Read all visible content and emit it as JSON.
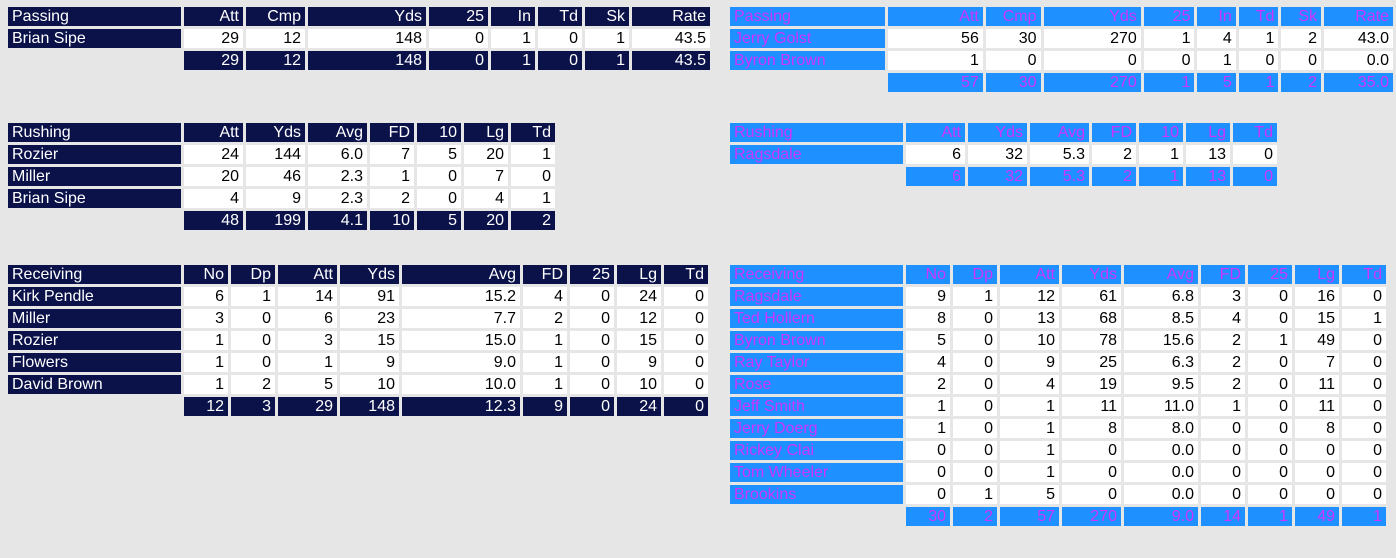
{
  "colors": {
    "navy": "#0b124a",
    "blue": "#1e90ff",
    "magenta_text": "#cc33ff",
    "background": "#e6e6e6"
  },
  "left": {
    "passing": {
      "title": "Passing",
      "columns": [
        "Att",
        "Cmp",
        "Yds",
        "25",
        "In",
        "Td",
        "Sk",
        "Rate"
      ],
      "rows": [
        {
          "name": "Brian Sipe",
          "vals": [
            "29",
            "12",
            "148",
            "0",
            "1",
            "0",
            "1",
            "43.5"
          ]
        }
      ],
      "total": [
        "29",
        "12",
        "148",
        "0",
        "1",
        "0",
        "1",
        "43.5"
      ]
    },
    "rushing": {
      "title": "Rushing",
      "columns": [
        "Att",
        "Yds",
        "Avg",
        "FD",
        "10",
        "Lg",
        "Td"
      ],
      "rows": [
        {
          "name": "Rozier",
          "vals": [
            "24",
            "144",
            "6.0",
            "7",
            "5",
            "20",
            "1"
          ]
        },
        {
          "name": "Miller",
          "vals": [
            "20",
            "46",
            "2.3",
            "1",
            "0",
            "7",
            "0"
          ]
        },
        {
          "name": "Brian Sipe",
          "vals": [
            "4",
            "9",
            "2.3",
            "2",
            "0",
            "4",
            "1"
          ]
        }
      ],
      "total": [
        "48",
        "199",
        "4.1",
        "10",
        "5",
        "20",
        "2"
      ]
    },
    "receiving": {
      "title": "Receiving",
      "columns": [
        "No",
        "Dp",
        "Att",
        "Yds",
        "Avg",
        "FD",
        "25",
        "Lg",
        "Td"
      ],
      "rows": [
        {
          "name": "Kirk Pendle",
          "vals": [
            "6",
            "1",
            "14",
            "91",
            "15.2",
            "4",
            "0",
            "24",
            "0"
          ]
        },
        {
          "name": "Miller",
          "vals": [
            "3",
            "0",
            "6",
            "23",
            "7.7",
            "2",
            "0",
            "12",
            "0"
          ]
        },
        {
          "name": "Rozier",
          "vals": [
            "1",
            "0",
            "3",
            "15",
            "15.0",
            "1",
            "0",
            "15",
            "0"
          ]
        },
        {
          "name": "Flowers",
          "vals": [
            "1",
            "0",
            "1",
            "9",
            "9.0",
            "1",
            "0",
            "9",
            "0"
          ]
        },
        {
          "name": "David Brown",
          "vals": [
            "1",
            "2",
            "5",
            "10",
            "10.0",
            "1",
            "0",
            "10",
            "0"
          ]
        }
      ],
      "total": [
        "12",
        "3",
        "29",
        "148",
        "12.3",
        "9",
        "0",
        "24",
        "0"
      ]
    }
  },
  "right": {
    "passing": {
      "title": "Passing",
      "columns": [
        "Att",
        "Cmp",
        "Yds",
        "25",
        "In",
        "Td",
        "Sk",
        "Rate"
      ],
      "rows": [
        {
          "name": "Jerry Golst",
          "vals": [
            "56",
            "30",
            "270",
            "1",
            "4",
            "1",
            "2",
            "43.0"
          ]
        },
        {
          "name": "Byron Brown",
          "vals": [
            "1",
            "0",
            "0",
            "0",
            "1",
            "0",
            "0",
            "0.0"
          ]
        }
      ],
      "total": [
        "57",
        "30",
        "270",
        "1",
        "5",
        "1",
        "2",
        "35.0"
      ]
    },
    "rushing": {
      "title": "Rushing",
      "columns": [
        "Att",
        "Yds",
        "Avg",
        "FD",
        "10",
        "Lg",
        "Td"
      ],
      "rows": [
        {
          "name": "Ragsdale",
          "vals": [
            "6",
            "32",
            "5.3",
            "2",
            "1",
            "13",
            "0"
          ]
        }
      ],
      "total": [
        "6",
        "32",
        "5.3",
        "2",
        "1",
        "13",
        "0"
      ]
    },
    "receiving": {
      "title": "Receiving",
      "columns": [
        "No",
        "Dp",
        "Att",
        "Yds",
        "Avg",
        "FD",
        "25",
        "Lg",
        "Td"
      ],
      "rows": [
        {
          "name": "Ragsdale",
          "vals": [
            "9",
            "1",
            "12",
            "61",
            "6.8",
            "3",
            "0",
            "16",
            "0"
          ]
        },
        {
          "name": "Ted Hollern",
          "vals": [
            "8",
            "0",
            "13",
            "68",
            "8.5",
            "4",
            "0",
            "15",
            "1"
          ]
        },
        {
          "name": "Byron Brown",
          "vals": [
            "5",
            "0",
            "10",
            "78",
            "15.6",
            "2",
            "1",
            "49",
            "0"
          ]
        },
        {
          "name": "Ray Taylor",
          "vals": [
            "4",
            "0",
            "9",
            "25",
            "6.3",
            "2",
            "0",
            "7",
            "0"
          ]
        },
        {
          "name": "Rose",
          "vals": [
            "2",
            "0",
            "4",
            "19",
            "9.5",
            "2",
            "0",
            "11",
            "0"
          ]
        },
        {
          "name": "Jeff Smith",
          "vals": [
            "1",
            "0",
            "1",
            "11",
            "11.0",
            "1",
            "0",
            "11",
            "0"
          ]
        },
        {
          "name": "Jerry Doerg",
          "vals": [
            "1",
            "0",
            "1",
            "8",
            "8.0",
            "0",
            "0",
            "8",
            "0"
          ]
        },
        {
          "name": "Rickey Clai",
          "vals": [
            "0",
            "0",
            "1",
            "0",
            "0.0",
            "0",
            "0",
            "0",
            "0"
          ]
        },
        {
          "name": "Tom Wheeler",
          "vals": [
            "0",
            "0",
            "1",
            "0",
            "0.0",
            "0",
            "0",
            "0",
            "0"
          ]
        },
        {
          "name": "Brookins",
          "vals": [
            "0",
            "1",
            "5",
            "0",
            "0.0",
            "0",
            "0",
            "0",
            "0"
          ]
        }
      ],
      "total": [
        "30",
        "2",
        "57",
        "270",
        "9.0",
        "14",
        "1",
        "49",
        "1"
      ]
    }
  }
}
